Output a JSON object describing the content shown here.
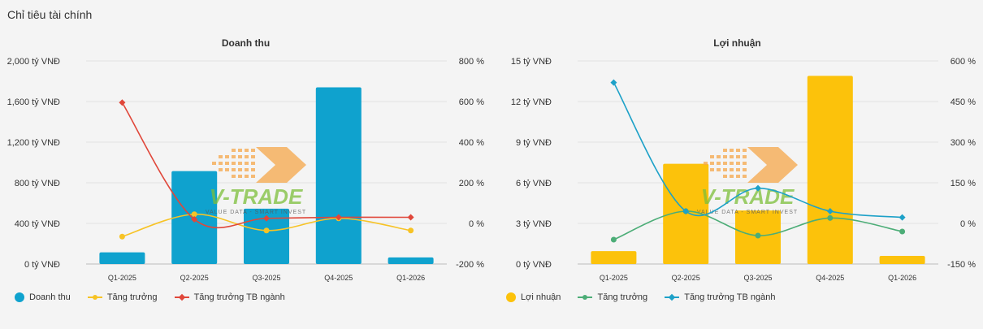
{
  "section_title": "Chỉ tiêu tài chính",
  "watermark": {
    "text": "V-TRADE",
    "tagline": "VALUE DATA - SMART INVEST",
    "logo_color": "#f6a74a",
    "text_color": "#7cbf3a"
  },
  "chart_data": [
    {
      "type": "bar",
      "title": "Doanh thu",
      "categories": [
        "Q1-2025",
        "Q2-2025",
        "Q3-2025",
        "Q4-2025",
        "Q1-2026"
      ],
      "left_axis": {
        "ylim": [
          0,
          2000
        ],
        "ticks": [
          0,
          400,
          800,
          1200,
          1600,
          2000
        ],
        "tick_labels": [
          "0 tỷ VNĐ",
          "400 tỷ VNĐ",
          "800 tỷ VNĐ",
          "1,200 tỷ VNĐ",
          "1,600 tỷ VNĐ",
          "2,000 tỷ VNĐ"
        ]
      },
      "right_axis": {
        "ylim": [
          -200,
          800
        ],
        "ticks": [
          -200,
          0,
          200,
          400,
          600,
          800
        ],
        "tick_labels": [
          "-200 %",
          "0 %",
          "200 %",
          "400 %",
          "600 %",
          "800 %"
        ]
      },
      "grid": true,
      "legend_position": "bottom-left",
      "series": [
        {
          "name": "Doanh thu",
          "kind": "bar",
          "axis": "left",
          "color": "#0fa2ce",
          "marker": "circle",
          "values": [
            115,
            915,
            545,
            1740,
            65
          ]
        },
        {
          "name": "Tăng trưởng",
          "kind": "line",
          "axis": "right",
          "color": "#f7c325",
          "marker": "circle",
          "values": [
            -65,
            45,
            -35,
            25,
            -35
          ]
        },
        {
          "name": "Tăng trưởng TB ngành",
          "kind": "line",
          "axis": "right",
          "color": "#e0473a",
          "marker": "diamond",
          "values": [
            595,
            20,
            25,
            30,
            30
          ]
        }
      ]
    },
    {
      "type": "bar",
      "title": "Lợi nhuận",
      "categories": [
        "Q1-2025",
        "Q2-2025",
        "Q3-2025",
        "Q4-2025",
        "Q1-2026"
      ],
      "left_axis": {
        "ylim": [
          0,
          15
        ],
        "ticks": [
          0,
          3,
          6,
          9,
          12,
          15
        ],
        "tick_labels": [
          "0 tỷ VNĐ",
          "3 tỷ VNĐ",
          "6 tỷ VNĐ",
          "9 tỷ VNĐ",
          "12 tỷ VNĐ",
          "15 tỷ VNĐ"
        ]
      },
      "right_axis": {
        "ylim": [
          -150,
          600
        ],
        "ticks": [
          -150,
          0,
          150,
          300,
          450,
          600
        ],
        "tick_labels": [
          "-150 %",
          "0 %",
          "150 %",
          "300 %",
          "450 %",
          "600 %"
        ]
      },
      "grid": true,
      "legend_position": "bottom-left",
      "series": [
        {
          "name": "Lợi nhuận",
          "kind": "bar",
          "axis": "left",
          "color": "#fcc20b",
          "marker": "circle",
          "values": [
            0.95,
            7.4,
            3.95,
            13.9,
            0.6
          ]
        },
        {
          "name": "Tăng trưởng",
          "kind": "line",
          "axis": "right",
          "color": "#4cad77",
          "marker": "circle",
          "values": [
            -60,
            45,
            -45,
            20,
            -30
          ]
        },
        {
          "name": "Tăng trưởng TB ngành",
          "kind": "line",
          "axis": "right",
          "color": "#1da1c8",
          "marker": "diamond",
          "values": [
            520,
            45,
            130,
            45,
            22
          ]
        }
      ]
    }
  ]
}
